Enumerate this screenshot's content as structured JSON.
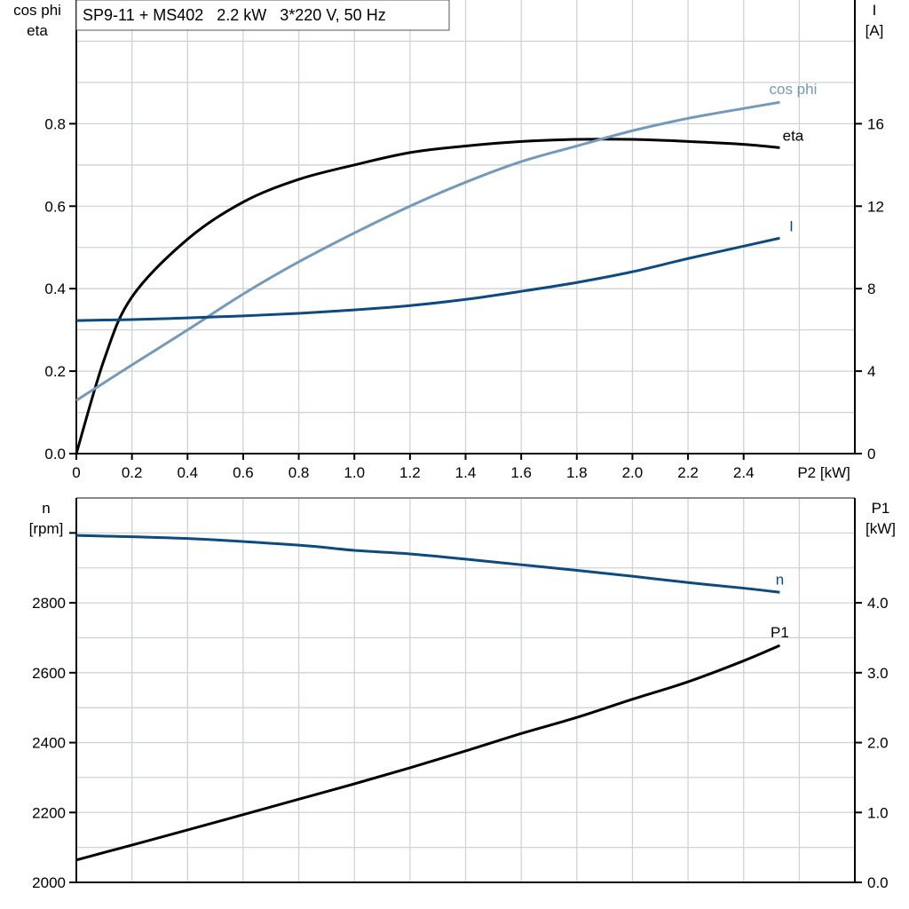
{
  "title": "SP9-11 + MS402   2.2 kW   3*220 V, 50 Hz",
  "colors": {
    "eta": "#000000",
    "cos_phi": "#7399bb",
    "I": "#0d4a80",
    "n": "#0d4a80",
    "P1": "#000000",
    "grid": "#cfd3d6"
  },
  "chart_data": [
    {
      "type": "line",
      "xlabel": "P2 [kW]",
      "xlim": [
        0,
        2.8
      ],
      "xticks": [
        "0",
        "0.2",
        "0.4",
        "0.6",
        "0.8",
        "1.0",
        "1.2",
        "1.4",
        "1.6",
        "1.8",
        "2.0",
        "2.2",
        "2.4"
      ],
      "ylabel_left": [
        "cos phi",
        "eta"
      ],
      "ylim_left": [
        0,
        1.1
      ],
      "yticks_left": [
        "0.0",
        "0.2",
        "0.4",
        "0.6",
        "0.8"
      ],
      "ylabel_right": [
        "I",
        "[A]"
      ],
      "ylim_right": [
        0,
        22
      ],
      "yticks_right": [
        "0",
        "4",
        "8",
        "12",
        "16"
      ],
      "grid": true,
      "x": [
        0,
        0.1,
        0.2,
        0.4,
        0.6,
        0.8,
        1.0,
        1.2,
        1.4,
        1.6,
        1.8,
        2.0,
        2.2,
        2.4,
        2.53
      ],
      "series": [
        {
          "name": "eta",
          "axis": "left",
          "values": [
            0,
            0.228,
            0.38,
            0.52,
            0.61,
            0.665,
            0.7,
            0.73,
            0.746,
            0.757,
            0.762,
            0.762,
            0.757,
            0.75,
            0.742
          ]
        },
        {
          "name": "cos phi",
          "axis": "left",
          "values": [
            0.129,
            0.172,
            0.215,
            0.3,
            0.387,
            0.465,
            0.535,
            0.6,
            0.658,
            0.708,
            0.746,
            0.783,
            0.813,
            0.837,
            0.852
          ]
        },
        {
          "name": "I",
          "axis": "right",
          "values": [
            6.45,
            6.48,
            6.5,
            6.58,
            6.68,
            6.8,
            6.97,
            7.18,
            7.48,
            7.87,
            8.3,
            8.82,
            9.46,
            10.06,
            10.45
          ]
        }
      ]
    },
    {
      "type": "line",
      "xlim": [
        0,
        2.8
      ],
      "ylabel_left": [
        "n",
        "[rpm]"
      ],
      "ylim_left": [
        2000,
        3100
      ],
      "yticks_left": [
        "2000",
        "2200",
        "2400",
        "2600",
        "2800"
      ],
      "ylabel_right": [
        "P1",
        "[kW]"
      ],
      "ylim_right": [
        0,
        5.5
      ],
      "yticks_right": [
        "0.0",
        "1.0",
        "2.0",
        "3.0",
        "4.0"
      ],
      "grid": true,
      "x": [
        0,
        0.4,
        0.8,
        1.0,
        1.2,
        1.4,
        1.6,
        1.8,
        2.0,
        2.2,
        2.4,
        2.53
      ],
      "series": [
        {
          "name": "n",
          "axis": "left",
          "values": [
            2993,
            2984,
            2965,
            2950,
            2940,
            2925,
            2909,
            2893,
            2876,
            2858,
            2842,
            2830
          ]
        },
        {
          "name": "P1",
          "axis": "right",
          "values": [
            0.32,
            0.75,
            1.19,
            1.41,
            1.64,
            1.88,
            2.13,
            2.36,
            2.62,
            2.87,
            3.17,
            3.39
          ]
        }
      ]
    }
  ]
}
